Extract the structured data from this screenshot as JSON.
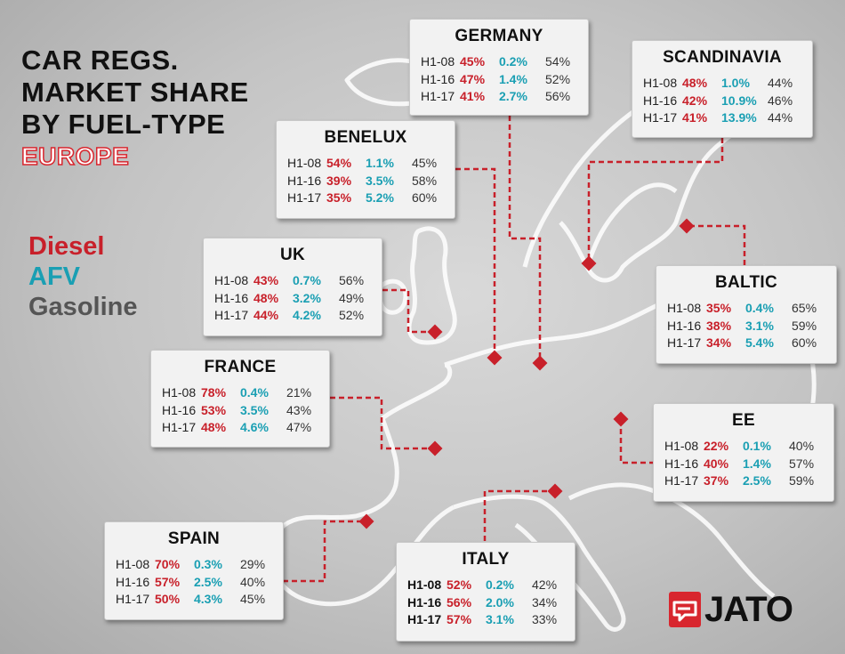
{
  "title": {
    "lines": [
      "CAR REGS.",
      "MARKET SHARE",
      "BY FUEL-TYPE"
    ],
    "region": "EUROPE"
  },
  "legend": {
    "diesel": "Diesel",
    "afv": "AFV",
    "gasoline": "Gasoline"
  },
  "colors": {
    "diesel": "#c8202a",
    "afv": "#1a9fb3",
    "gasoline": "#555555",
    "connector": "#c8202a",
    "logo": "#d8262e"
  },
  "regions": [
    {
      "name": "GERMANY",
      "rows": [
        {
          "period": "H1-08",
          "diesel": "45%",
          "afv": "0.2%",
          "gasoline": "54%"
        },
        {
          "period": "H1-16",
          "diesel": "47%",
          "afv": "1.4%",
          "gasoline": "52%"
        },
        {
          "period": "H1-17",
          "diesel": "41%",
          "afv": "2.7%",
          "gasoline": "56%"
        }
      ]
    },
    {
      "name": "SCANDINAVIA",
      "rows": [
        {
          "period": "H1-08",
          "diesel": "48%",
          "afv": "1.0%",
          "gasoline": "44%"
        },
        {
          "period": "H1-16",
          "diesel": "42%",
          "afv": "10.9%",
          "gasoline": "46%"
        },
        {
          "period": "H1-17",
          "diesel": "41%",
          "afv": "13.9%",
          "gasoline": "44%"
        }
      ]
    },
    {
      "name": "BENELUX",
      "rows": [
        {
          "period": "H1-08",
          "diesel": "54%",
          "afv": "1.1%",
          "gasoline": "45%"
        },
        {
          "period": "H1-16",
          "diesel": "39%",
          "afv": "3.5%",
          "gasoline": "58%"
        },
        {
          "period": "H1-17",
          "diesel": "35%",
          "afv": "5.2%",
          "gasoline": "60%"
        }
      ]
    },
    {
      "name": "UK",
      "rows": [
        {
          "period": "H1-08",
          "diesel": "43%",
          "afv": "0.7%",
          "gasoline": "56%"
        },
        {
          "period": "H1-16",
          "diesel": "48%",
          "afv": "3.2%",
          "gasoline": "49%"
        },
        {
          "period": "H1-17",
          "diesel": "44%",
          "afv": "4.2%",
          "gasoline": "52%"
        }
      ]
    },
    {
      "name": "BALTIC",
      "rows": [
        {
          "period": "H1-08",
          "diesel": "35%",
          "afv": "0.4%",
          "gasoline": "65%"
        },
        {
          "period": "H1-16",
          "diesel": "38%",
          "afv": "3.1%",
          "gasoline": "59%"
        },
        {
          "period": "H1-17",
          "diesel": "34%",
          "afv": "5.4%",
          "gasoline": "60%"
        }
      ]
    },
    {
      "name": "FRANCE",
      "rows": [
        {
          "period": "H1-08",
          "diesel": "78%",
          "afv": "0.4%",
          "gasoline": "21%"
        },
        {
          "period": "H1-16",
          "diesel": "53%",
          "afv": "3.5%",
          "gasoline": "43%"
        },
        {
          "period": "H1-17",
          "diesel": "48%",
          "afv": "4.6%",
          "gasoline": "47%"
        }
      ]
    },
    {
      "name": "EE",
      "rows": [
        {
          "period": "H1-08",
          "diesel": "22%",
          "afv": "0.1%",
          "gasoline": "40%"
        },
        {
          "period": "H1-16",
          "diesel": "40%",
          "afv": "1.4%",
          "gasoline": "57%"
        },
        {
          "period": "H1-17",
          "diesel": "37%",
          "afv": "2.5%",
          "gasoline": "59%"
        }
      ]
    },
    {
      "name": "SPAIN",
      "rows": [
        {
          "period": "H1-08",
          "diesel": "70%",
          "afv": "0.3%",
          "gasoline": "29%"
        },
        {
          "period": "H1-16",
          "diesel": "57%",
          "afv": "2.5%",
          "gasoline": "40%"
        },
        {
          "period": "H1-17",
          "diesel": "50%",
          "afv": "4.3%",
          "gasoline": "45%"
        }
      ]
    },
    {
      "name": "ITALY",
      "rows": [
        {
          "period": "H1-08",
          "diesel": "52%",
          "afv": "0.2%",
          "gasoline": "42%"
        },
        {
          "period": "H1-16",
          "diesel": "56%",
          "afv": "2.0%",
          "gasoline": "34%"
        },
        {
          "period": "H1-17",
          "diesel": "57%",
          "afv": "3.1%",
          "gasoline": "33%"
        }
      ]
    }
  ],
  "logo": {
    "text": "JATO"
  }
}
